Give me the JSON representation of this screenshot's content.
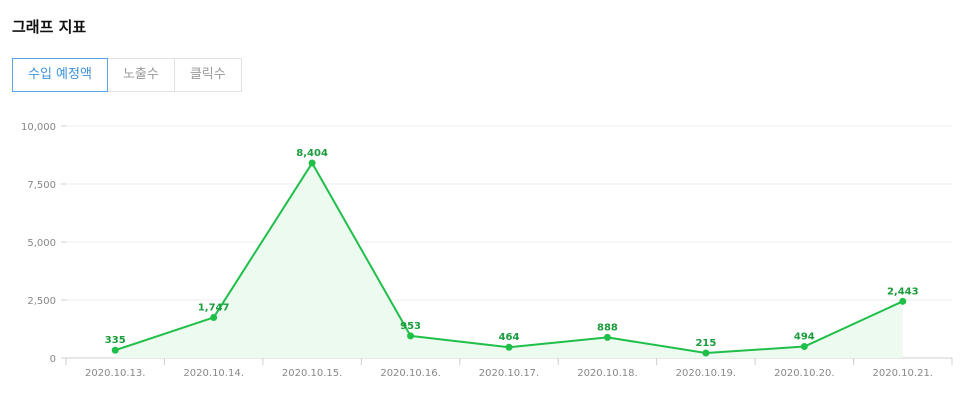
{
  "section": {
    "title": "그래프 지표"
  },
  "tabs": [
    {
      "label": "수입 예정액",
      "active": true
    },
    {
      "label": "노출수",
      "active": false
    },
    {
      "label": "클릭수",
      "active": false
    }
  ],
  "colors": {
    "line": "#1fbf4a",
    "area": "#edfaf0",
    "active_tab": "#3d8fd9",
    "grid": "#ececec"
  },
  "chart_data": {
    "type": "area",
    "categories": [
      "2020.10.13.",
      "2020.10.14.",
      "2020.10.15.",
      "2020.10.16.",
      "2020.10.17.",
      "2020.10.18.",
      "2020.10.19.",
      "2020.10.20.",
      "2020.10.21."
    ],
    "values": [
      335,
      1747,
      8404,
      953,
      464,
      888,
      215,
      494,
      2443
    ],
    "value_labels": [
      "335",
      "1,747",
      "8,404",
      "953",
      "464",
      "888",
      "215",
      "494",
      "2,443"
    ],
    "yticks": [
      0,
      2500,
      5000,
      7500,
      10000
    ],
    "ytick_labels": [
      "0",
      "2,500",
      "5,000",
      "7,500",
      "10,000"
    ],
    "ylim": [
      0,
      10000
    ],
    "grid": true,
    "title": "",
    "xlabel": "",
    "ylabel": ""
  }
}
